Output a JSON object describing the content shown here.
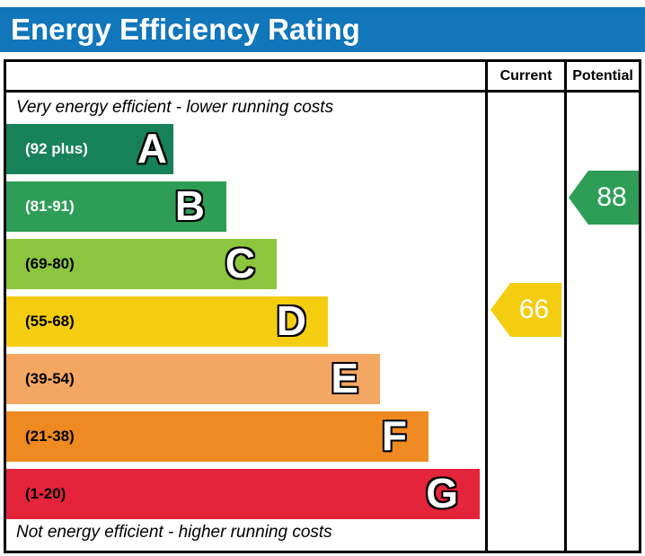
{
  "title": "Energy Efficiency Rating",
  "accent_blue": "#1176ba",
  "columns": {
    "current": "Current",
    "potential": "Potential"
  },
  "top_caption": "Very energy efficient - lower running costs",
  "bottom_caption": "Not energy efficient - higher running costs",
  "bands": [
    {
      "letter": "A",
      "range": "(92 plus)",
      "color": "#17815a",
      "label_color": "#ffffff"
    },
    {
      "letter": "B",
      "range": "(81-91)",
      "color": "#2e9e57",
      "label_color": "#ffffff"
    },
    {
      "letter": "C",
      "range": "(69-80)",
      "color": "#8cc63f",
      "label_color": "#000000"
    },
    {
      "letter": "D",
      "range": "(55-68)",
      "color": "#f4cd10",
      "label_color": "#000000"
    },
    {
      "letter": "E",
      "range": "(39-54)",
      "color": "#f4a763",
      "label_color": "#000000"
    },
    {
      "letter": "F",
      "range": "(21-38)",
      "color": "#ee8a21",
      "label_color": "#000000"
    },
    {
      "letter": "G",
      "range": "(1-20)",
      "color": "#e3243b",
      "label_color": "#000000"
    }
  ],
  "current": {
    "value": "66",
    "band": "D",
    "color": "#f4cd10"
  },
  "potential": {
    "value": "88",
    "band": "B",
    "color": "#2e9e57"
  },
  "chart_data": {
    "type": "bar",
    "title": "Energy Efficiency Rating",
    "categories": [
      "A",
      "B",
      "C",
      "D",
      "E",
      "F",
      "G"
    ],
    "band_ranges": [
      "92 plus",
      "81-91",
      "69-80",
      "55-68",
      "39-54",
      "21-38",
      "1-20"
    ],
    "band_colors": [
      "#17815a",
      "#2e9e57",
      "#8cc63f",
      "#f4cd10",
      "#f4a763",
      "#ee8a21",
      "#e3243b"
    ],
    "score_scale": [
      1,
      100
    ],
    "series": [
      {
        "name": "Current",
        "value": 66,
        "band": "D",
        "color": "#f4cd10"
      },
      {
        "name": "Potential",
        "value": 88,
        "band": "B",
        "color": "#2e9e57"
      }
    ],
    "annotations": [
      "Very energy efficient - lower running costs",
      "Not energy efficient - higher running costs"
    ],
    "legend_position": "none",
    "grid": false
  }
}
